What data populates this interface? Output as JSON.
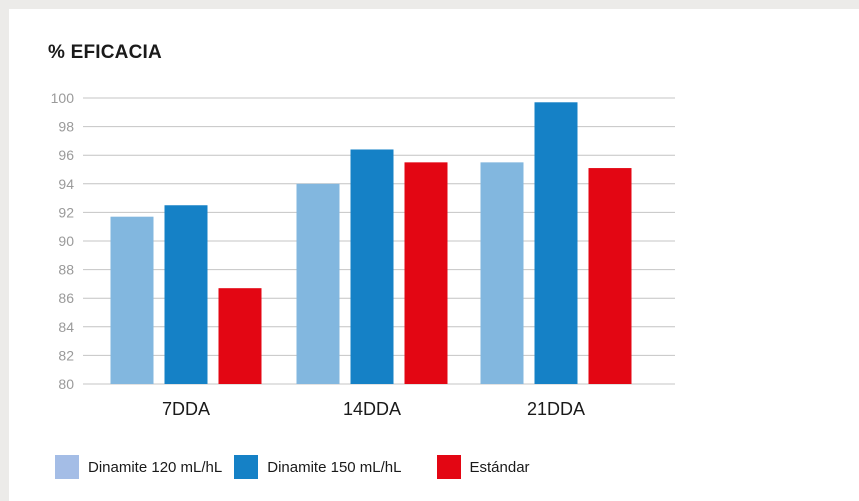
{
  "chart_data": {
    "type": "bar",
    "title": "% EFICACIA",
    "categories": [
      "7DDA",
      "14DDA",
      "21DDA"
    ],
    "series": [
      {
        "name": "Dinamite 120 mL/hL",
        "color": "#82b7df",
        "legend_color": "#a4bde6",
        "values": [
          91.7,
          94.0,
          95.5
        ]
      },
      {
        "name": "Dinamite 150 mL/hL",
        "color": "#1581c6",
        "legend_color": "#1581c6",
        "values": [
          92.5,
          96.4,
          99.7
        ]
      },
      {
        "name": "Estándar",
        "color": "#e30613",
        "legend_color": "#e30613",
        "values": [
          86.7,
          95.5,
          95.1
        ]
      }
    ],
    "ylim": [
      80,
      100
    ],
    "yticks": [
      "80",
      "82",
      "84",
      "86",
      "88",
      "90",
      "92",
      "94",
      "96",
      "98",
      "100"
    ],
    "grid": true,
    "legend_position": "bottom"
  }
}
